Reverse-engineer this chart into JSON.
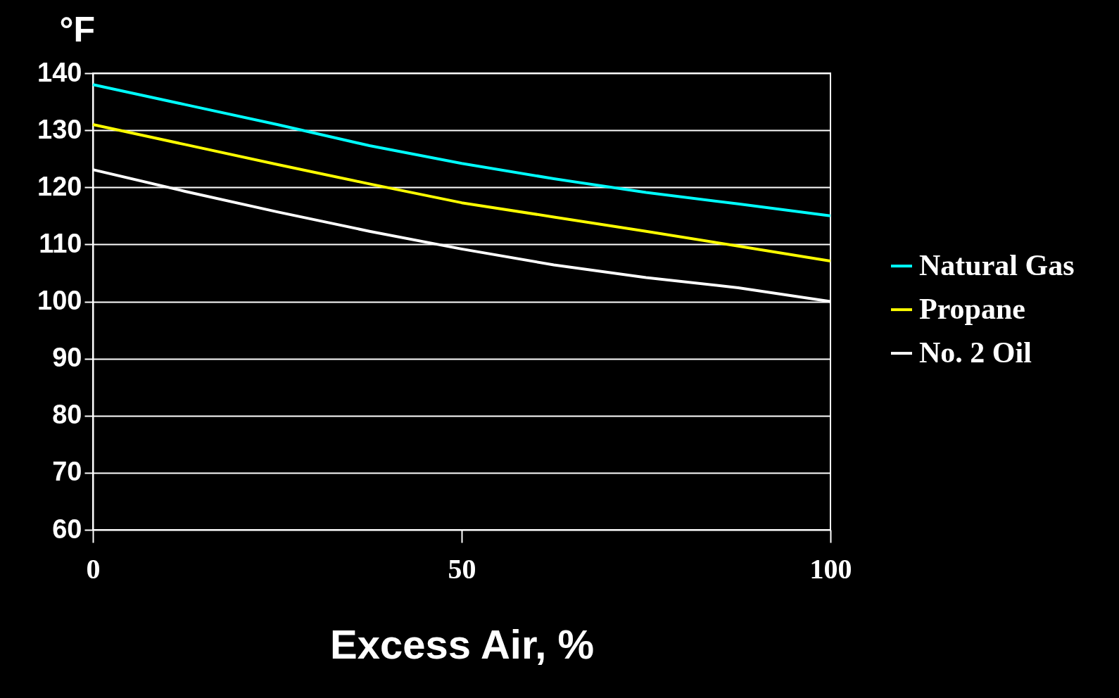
{
  "chart_data": {
    "type": "line",
    "xlabel": "Excess Air, %",
    "ylabel": "°F",
    "x": [
      0,
      12.5,
      25,
      37.5,
      50,
      62.5,
      75,
      87.5,
      100
    ],
    "series": [
      {
        "name": "Natural Gas",
        "color": "#00ffff",
        "values": [
          138,
          134.5,
          131,
          127.3,
          124.2,
          121.5,
          119.1,
          117.1,
          115
        ]
      },
      {
        "name": "Propane",
        "color": "#ffff00",
        "values": [
          131,
          127.5,
          124,
          120.6,
          117.3,
          114.8,
          112.3,
          109.7,
          107.1
        ]
      },
      {
        "name": "No. 2 Oil",
        "color": "#ffffff",
        "values": [
          123.1,
          119.3,
          115.7,
          112.3,
          109.2,
          106.4,
          104.2,
          102.4,
          100
        ]
      }
    ],
    "xlim": [
      0,
      100
    ],
    "xticks": [
      0,
      50,
      100
    ],
    "ylim": [
      60,
      140
    ],
    "yticks": [
      60,
      70,
      80,
      90,
      100,
      110,
      120,
      130,
      140
    ],
    "grid": "y",
    "legend": "right",
    "marker": "none",
    "line_style": "solid"
  }
}
